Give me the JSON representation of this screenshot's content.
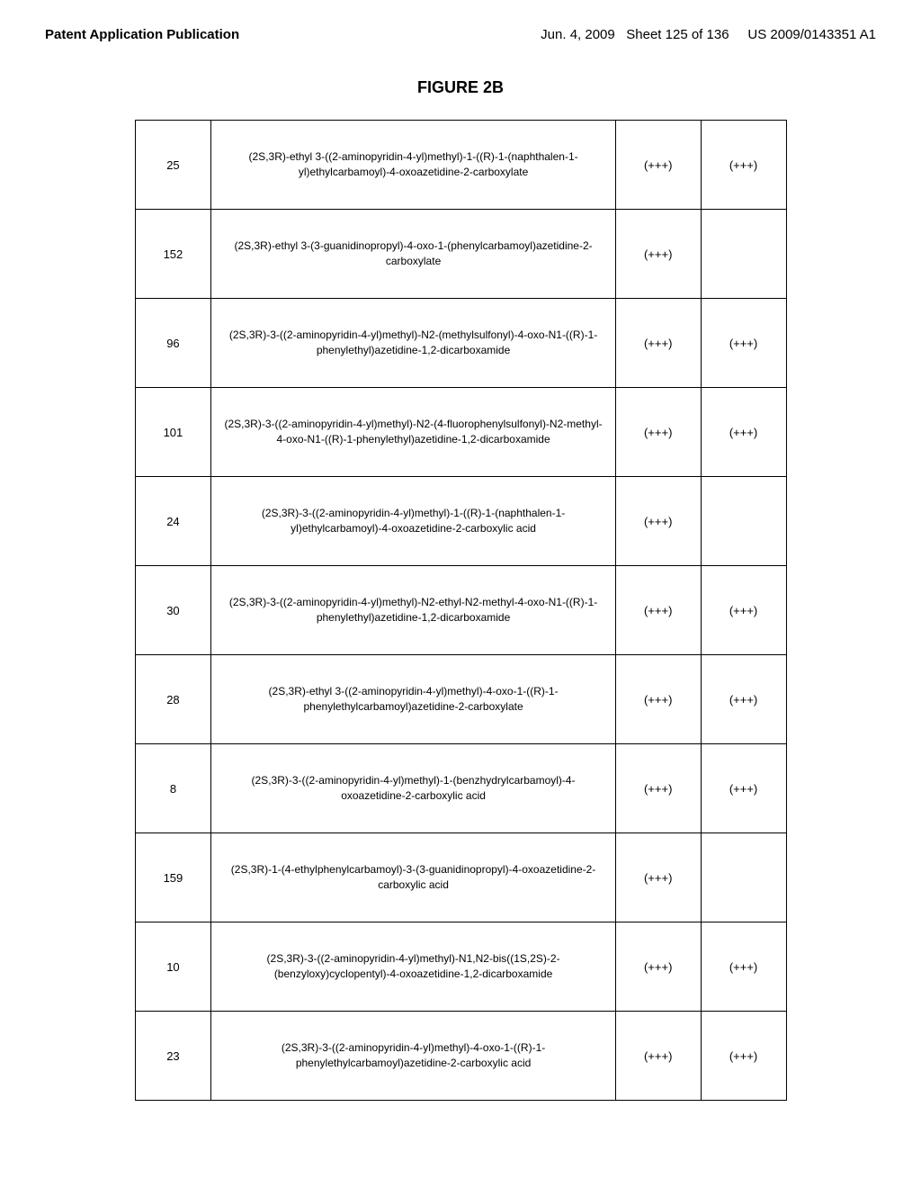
{
  "header": {
    "left": "Patent Application Publication",
    "date": "Jun. 4, 2009",
    "sheet": "Sheet 125 of 136",
    "docnum": "US 2009/0143351 A1"
  },
  "figure_title": "FIGURE 2B",
  "table": {
    "rows": [
      {
        "id": "25",
        "name": "(2S,3R)-ethyl 3-((2-aminopyridin-4-yl)methyl)-1-((R)-1-(naphthalen-1-yl)ethylcarbamoyl)-4-oxoazetidine-2-carboxylate",
        "val1": "(+++)",
        "val2": "(+++)"
      },
      {
        "id": "152",
        "name": "(2S,3R)-ethyl 3-(3-guanidinopropyl)-4-oxo-1-(phenylcarbamoyl)azetidine-2-carboxylate",
        "val1": "(+++)",
        "val2": ""
      },
      {
        "id": "96",
        "name": "(2S,3R)-3-((2-aminopyridin-4-yl)methyl)-N2-(methylsulfonyl)-4-oxo-N1-((R)-1-phenylethyl)azetidine-1,2-dicarboxamide",
        "val1": "(+++)",
        "val2": "(+++)"
      },
      {
        "id": "101",
        "name": "(2S,3R)-3-((2-aminopyridin-4-yl)methyl)-N2-(4-fluorophenylsulfonyl)-N2-methyl-4-oxo-N1-((R)-1-phenylethyl)azetidine-1,2-dicarboxamide",
        "val1": "(+++)",
        "val2": "(+++)"
      },
      {
        "id": "24",
        "name": "(2S,3R)-3-((2-aminopyridin-4-yl)methyl)-1-((R)-1-(naphthalen-1-yl)ethylcarbamoyl)-4-oxoazetidine-2-carboxylic acid",
        "val1": "(+++)",
        "val2": ""
      },
      {
        "id": "30",
        "name": "(2S,3R)-3-((2-aminopyridin-4-yl)methyl)-N2-ethyl-N2-methyl-4-oxo-N1-((R)-1-phenylethyl)azetidine-1,2-dicarboxamide",
        "val1": "(+++)",
        "val2": "(+++)"
      },
      {
        "id": "28",
        "name": "(2S,3R)-ethyl 3-((2-aminopyridin-4-yl)methyl)-4-oxo-1-((R)-1-phenylethylcarbamoyl)azetidine-2-carboxylate",
        "val1": "(+++)",
        "val2": "(+++)"
      },
      {
        "id": "8",
        "name": "(2S,3R)-3-((2-aminopyridin-4-yl)methyl)-1-(benzhydrylcarbamoyl)-4-oxoazetidine-2-carboxylic acid",
        "val1": "(+++)",
        "val2": "(+++)"
      },
      {
        "id": "159",
        "name": "(2S,3R)-1-(4-ethylphenylcarbamoyl)-3-(3-guanidinopropyl)-4-oxoazetidine-2-carboxylic acid",
        "val1": "(+++)",
        "val2": ""
      },
      {
        "id": "10",
        "name": "(2S,3R)-3-((2-aminopyridin-4-yl)methyl)-N1,N2-bis((1S,2S)-2-(benzyloxy)cyclopentyl)-4-oxoazetidine-1,2-dicarboxamide",
        "val1": "(+++)",
        "val2": "(+++)"
      },
      {
        "id": "23",
        "name": "(2S,3R)-3-((2-aminopyridin-4-yl)methyl)-4-oxo-1-((R)-1-phenylethylcarbamoyl)azetidine-2-carboxylic acid",
        "val1": "(+++)",
        "val2": "(+++)"
      }
    ]
  }
}
